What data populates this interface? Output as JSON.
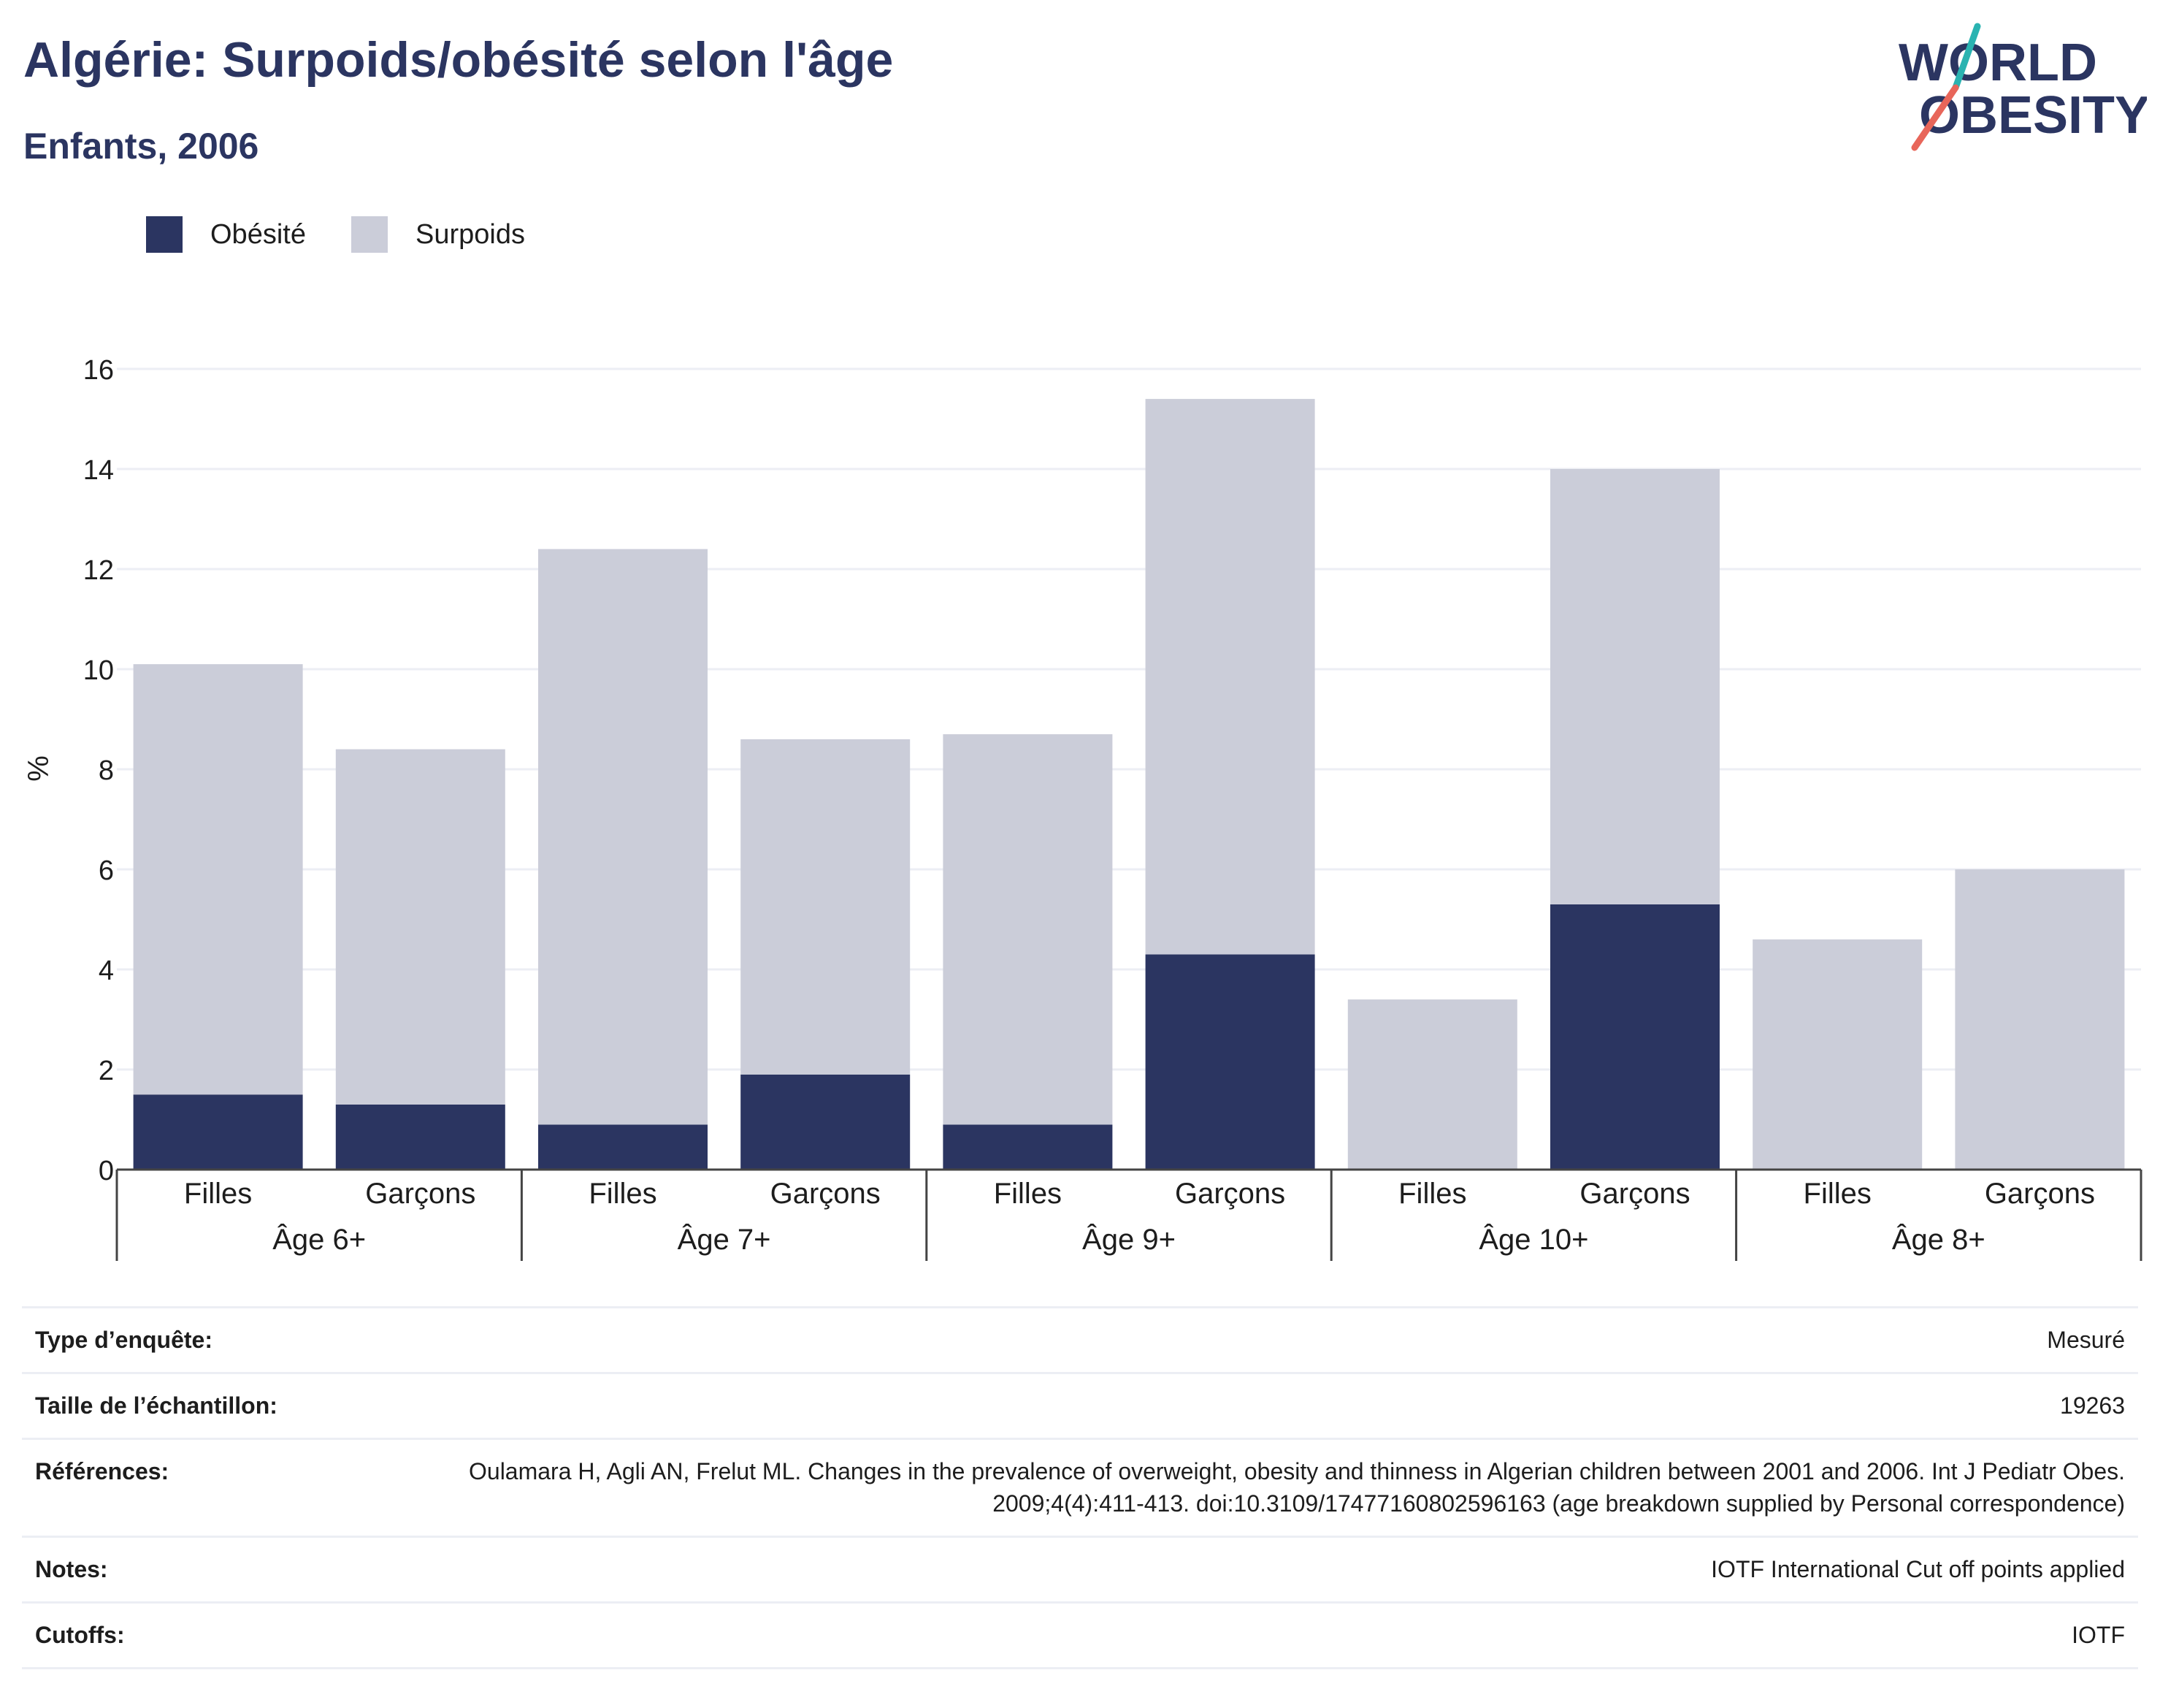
{
  "header": {
    "title": "Algérie: Surpoids/obésité selon l'âge",
    "subtitle": "Enfants, 2006"
  },
  "logo": {
    "line1": "WORLD",
    "line2": "OBESITY"
  },
  "colors": {
    "obesity": "#2b3561",
    "overweight": "#cbcdd9",
    "accent_teal": "#2ab3b1",
    "accent_red": "#e8665a"
  },
  "chart_data": {
    "type": "bar",
    "stacked": true,
    "ylabel": "%",
    "ylim": [
      0,
      16
    ],
    "yticks": [
      0,
      2,
      4,
      6,
      8,
      10,
      12,
      14,
      16
    ],
    "grid": true,
    "legend_position": "top-left",
    "groups": [
      {
        "label": "Âge 6+",
        "categories": [
          "Filles",
          "Garçons"
        ]
      },
      {
        "label": "Âge 7+",
        "categories": [
          "Filles",
          "Garçons"
        ]
      },
      {
        "label": "Âge 9+",
        "categories": [
          "Filles",
          "Garçons"
        ]
      },
      {
        "label": "Âge 10+",
        "categories": [
          "Filles",
          "Garçons"
        ]
      },
      {
        "label": "Âge 8+",
        "categories": [
          "Filles",
          "Garçons"
        ]
      }
    ],
    "series": [
      {
        "name": "Obésité",
        "values": [
          1.5,
          1.3,
          0.9,
          1.9,
          0.9,
          4.3,
          0,
          5.3,
          0,
          0
        ]
      },
      {
        "name": "Surpoids",
        "values": [
          8.6,
          7.1,
          11.5,
          6.7,
          7.8,
          11.1,
          3.4,
          8.7,
          4.6,
          6.0
        ]
      }
    ]
  },
  "info": [
    {
      "label": "Type d’enquête:",
      "value": "Mesuré"
    },
    {
      "label": "Taille de l’échantillon:",
      "value": "19263"
    },
    {
      "label": "Références:",
      "value": "Oulamara H, Agli AN, Frelut ML. Changes in the prevalence of overweight, obesity and thinness in Algerian children between 2001 and 2006. Int J Pediatr Obes. 2009;4(4):411-413. doi:10.3109/17477160802596163 (age breakdown supplied by Personal correspondence)"
    },
    {
      "label": "Notes:",
      "value": "IOTF International Cut off points applied"
    },
    {
      "label": "Cutoffs:",
      "value": "IOTF"
    }
  ]
}
